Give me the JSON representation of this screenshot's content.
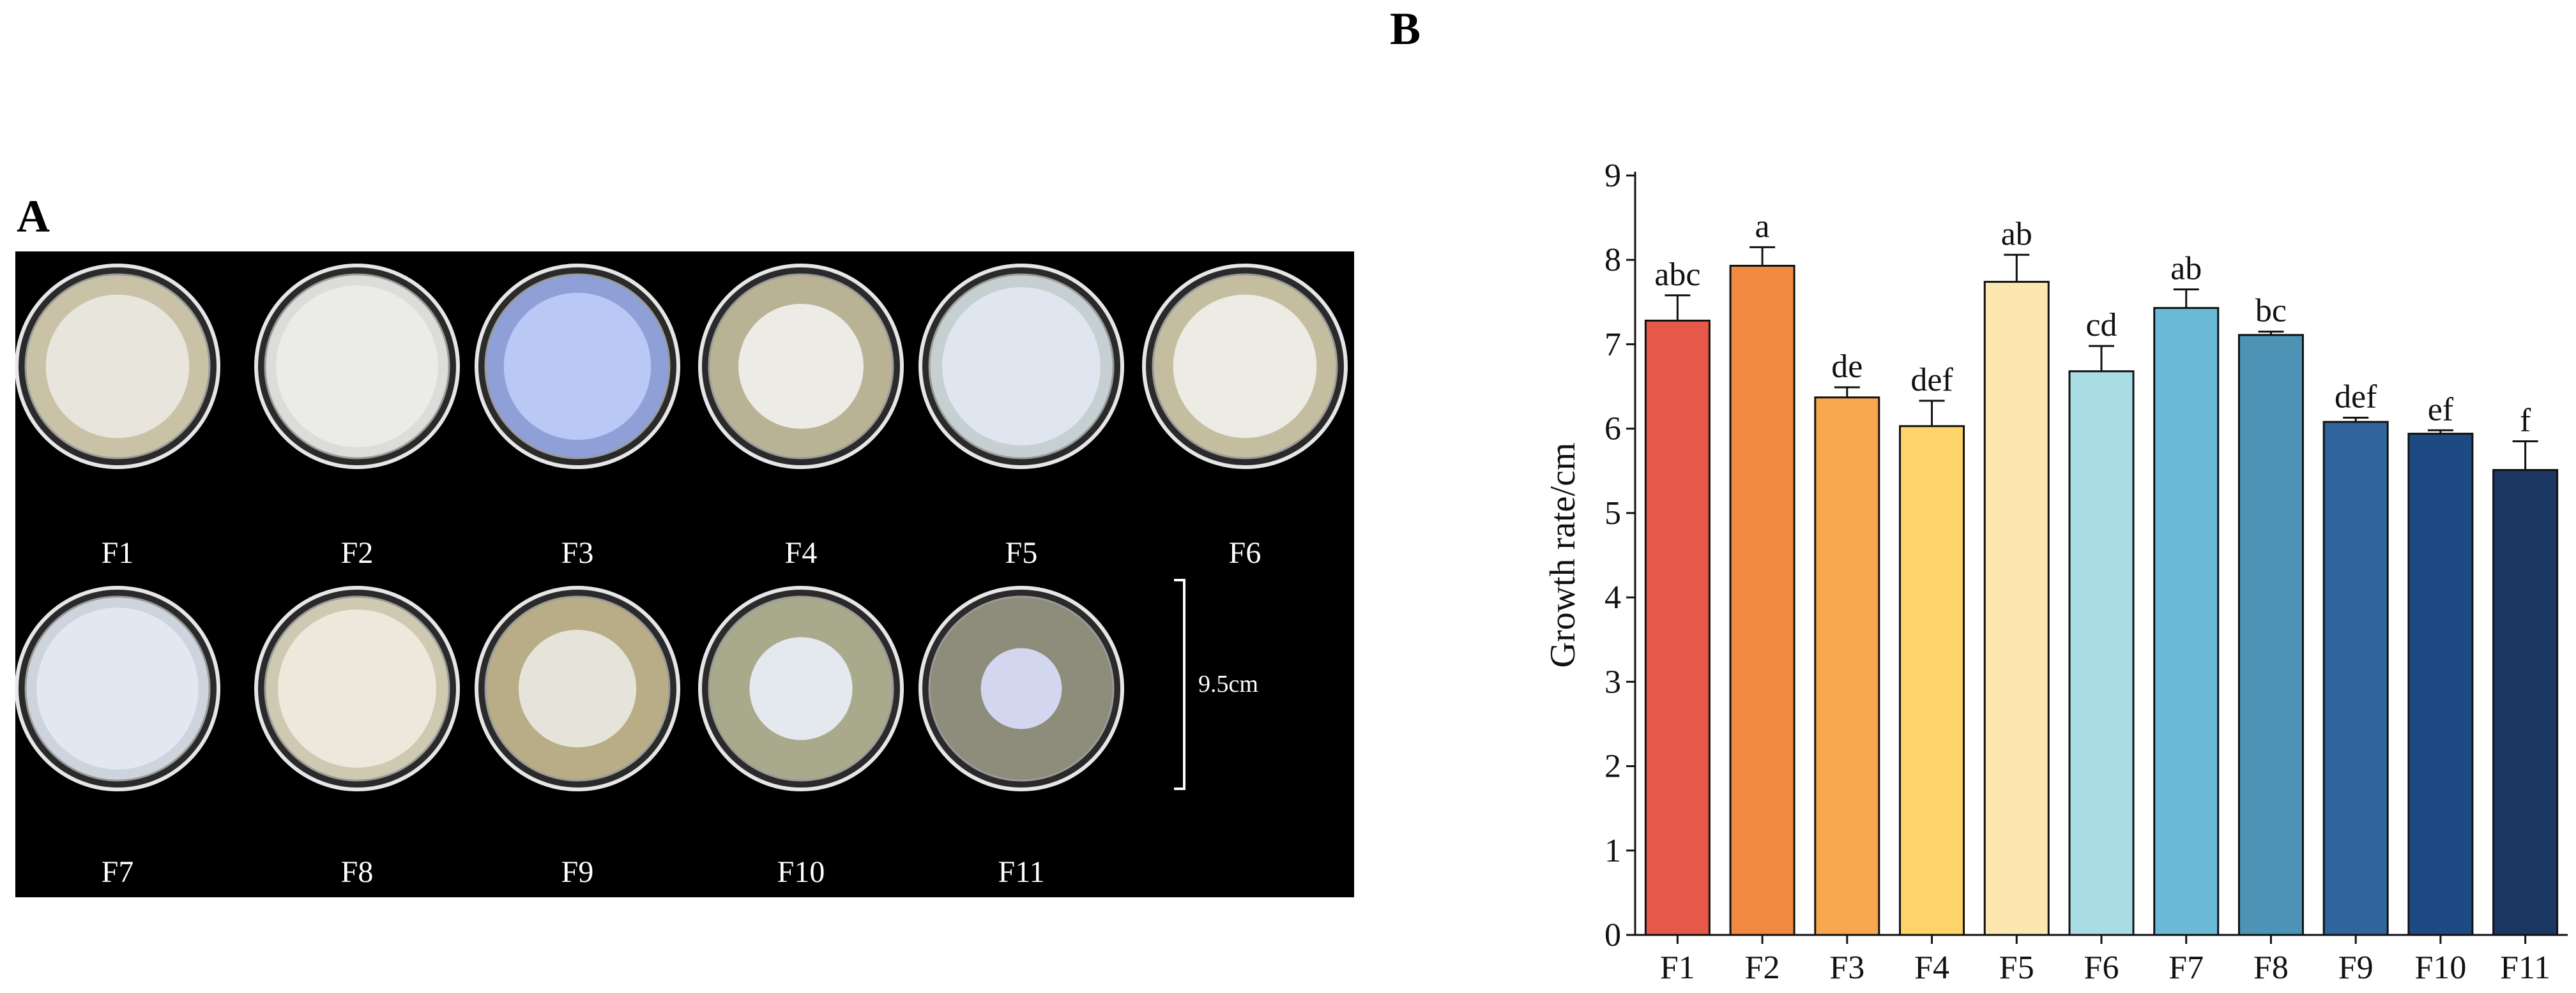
{
  "panel_a": {
    "label": "A",
    "plates": [
      {
        "label": "F1",
        "agar": "#c9c2a6",
        "colony": "#e8e5dc",
        "colony_ratio": 0.78
      },
      {
        "label": "F2",
        "agar": "#dcdcd8",
        "colony": "#ebebea",
        "colony_ratio": 0.88
      },
      {
        "label": "F3",
        "agar": "#8fa0d8",
        "colony": "#b9c8f4",
        "colony_ratio": 0.8
      },
      {
        "label": "F4",
        "agar": "#b9b294",
        "colony": "#ecebe6",
        "colony_ratio": 0.68
      },
      {
        "label": "F5",
        "agar": "#c6d0d2",
        "colony": "#dfe6ef",
        "colony_ratio": 0.86
      },
      {
        "label": "F6",
        "agar": "#c5bda0",
        "colony": "#ecebe4",
        "colony_ratio": 0.78
      },
      {
        "label": "F7",
        "agar": "#cdd4dd",
        "colony": "#e2e8f2",
        "colony_ratio": 0.88
      },
      {
        "label": "F8",
        "agar": "#d0c9b1",
        "colony": "#ece8dc",
        "colony_ratio": 0.86
      },
      {
        "label": "F9",
        "agar": "#b8ad86",
        "colony": "#e6e4da",
        "colony_ratio": 0.64
      },
      {
        "label": "F10",
        "agar": "#a9a98c",
        "colony": "#e4e8ef",
        "colony_ratio": 0.56
      },
      {
        "label": "F11",
        "agar": "#8e8d7b",
        "colony": "#d3d6ef",
        "colony_ratio": 0.44
      }
    ],
    "scale_bar_label": "9.5cm"
  },
  "panel_b": {
    "label": "B"
  },
  "chart_data": {
    "type": "bar",
    "categories": [
      "F1",
      "F2",
      "F3",
      "F4",
      "F5",
      "F6",
      "F7",
      "F8",
      "F9",
      "F10",
      "F11"
    ],
    "values": [
      7.28,
      7.93,
      6.37,
      6.03,
      7.74,
      6.68,
      7.43,
      7.11,
      6.08,
      5.94,
      5.51
    ],
    "errors": [
      0.3,
      0.22,
      0.12,
      0.3,
      0.32,
      0.3,
      0.22,
      0.04,
      0.05,
      0.04,
      0.34
    ],
    "significance": [
      "abc",
      "a",
      "de",
      "def",
      "ab",
      "cd",
      "ab",
      "bc",
      "def",
      "ef",
      "f"
    ],
    "colors": [
      "#e5584a",
      "#ef8a40",
      "#f7a84e",
      "#fdd36a",
      "#fde7b0",
      "#a9dde6",
      "#6bbbd8",
      "#4d93b5",
      "#2f649c",
      "#1d4a83",
      "#1b3660"
    ],
    "ylabel": "Growth rate/cm",
    "yticks": [
      0,
      1,
      2,
      3,
      4,
      5,
      6,
      7,
      8,
      9
    ],
    "ylim": [
      0,
      9
    ],
    "grid": false,
    "legend": "none"
  }
}
